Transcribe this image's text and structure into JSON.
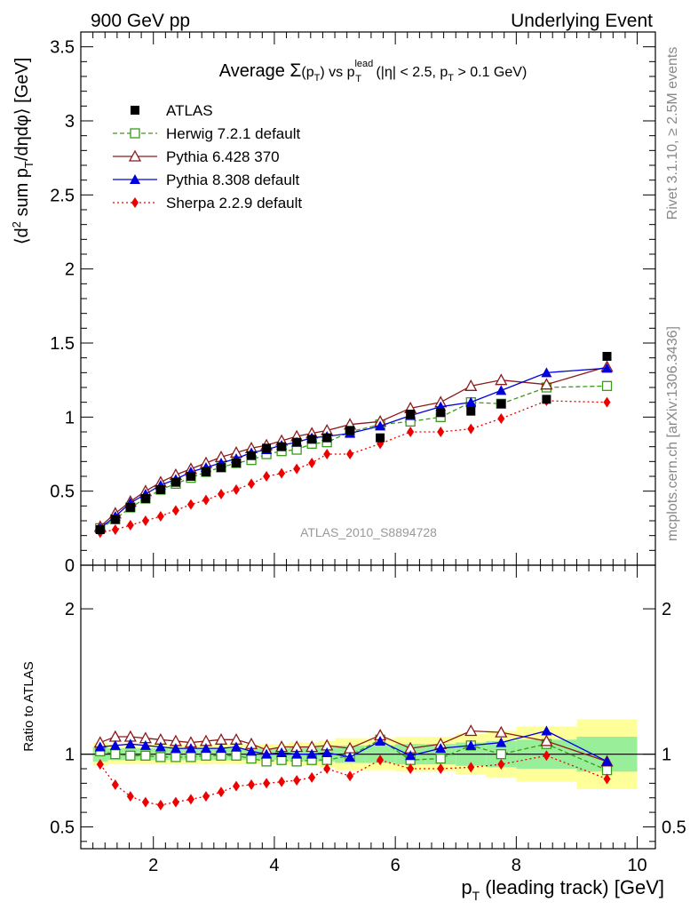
{
  "header": {
    "left_title": "900 GeV pp",
    "right_title": "Underlying Event"
  },
  "side_labels": {
    "rivet": "Rivet 3.1.10, ≥ 2.5M events",
    "mcplots": "mcplots.cern.ch [arXiv:1306.3436]"
  },
  "chart_data": {
    "type": "scatter",
    "title": "Average Σ(p_T) vs p_T^lead (|η| < 2.5, p_T > 0.1 GeV)",
    "analysis_tag": "ATLAS_2010_S8894728",
    "xlabel": "p_T (leading track) [GeV]",
    "ylabel": "⟨d² sum p_T/dηdφ⟩ [GeV]",
    "ratio_ylabel": "Ratio to ATLAS",
    "xlim": [
      0.8,
      10.3
    ],
    "ylim": [
      0,
      3.6
    ],
    "ratio_ylim": [
      0.35,
      2.3
    ],
    "x_ticks": [
      2,
      4,
      6,
      8,
      10
    ],
    "y_ticks": [
      0,
      0.5,
      1,
      1.5,
      2,
      2.5,
      3,
      3.5
    ],
    "ratio_ticks": [
      0.5,
      1,
      2
    ],
    "legend_placement": "top-left",
    "x": [
      1.12,
      1.37,
      1.62,
      1.87,
      2.12,
      2.37,
      2.62,
      2.87,
      3.12,
      3.37,
      3.62,
      3.87,
      4.12,
      4.37,
      4.62,
      4.87,
      5.25,
      5.75,
      6.25,
      6.75,
      7.25,
      7.75,
      8.5,
      9.5
    ],
    "band_edges": [
      1.0,
      1.25,
      1.5,
      1.75,
      2.0,
      2.25,
      2.5,
      2.75,
      3.0,
      3.25,
      3.5,
      3.75,
      4.0,
      4.25,
      4.5,
      4.75,
      5.0,
      5.5,
      6.0,
      6.5,
      7.0,
      7.5,
      8.0,
      9.0,
      10.0
    ],
    "band_inner": [
      0.05,
      0.04,
      0.04,
      0.04,
      0.04,
      0.04,
      0.04,
      0.04,
      0.04,
      0.04,
      0.04,
      0.04,
      0.04,
      0.05,
      0.05,
      0.05,
      0.06,
      0.06,
      0.07,
      0.07,
      0.08,
      0.09,
      0.1,
      0.12
    ],
    "band_outer": [
      0.08,
      0.07,
      0.07,
      0.07,
      0.07,
      0.07,
      0.07,
      0.07,
      0.07,
      0.07,
      0.07,
      0.07,
      0.07,
      0.08,
      0.08,
      0.09,
      0.11,
      0.11,
      0.12,
      0.12,
      0.14,
      0.16,
      0.19,
      0.24
    ],
    "series": [
      {
        "name": "ATLAS",
        "style": "data",
        "color": "#000000",
        "values": [
          0.24,
          0.31,
          0.39,
          0.45,
          0.51,
          0.56,
          0.6,
          0.63,
          0.66,
          0.69,
          0.74,
          0.79,
          0.8,
          0.83,
          0.85,
          0.86,
          0.91,
          0.86,
          1.02,
          1.03,
          1.04,
          1.09,
          1.12,
          1.41
        ],
        "ratio": [
          1,
          1,
          1,
          1,
          1,
          1,
          1,
          1,
          1,
          1,
          1,
          1,
          1,
          1,
          1,
          1,
          1,
          1,
          1,
          1,
          1,
          1,
          1,
          1
        ]
      },
      {
        "name": "Herwig 7.2.1 default",
        "style": "open-square-dashed",
        "color": "#3a9a1a",
        "values": [
          0.25,
          0.31,
          0.39,
          0.45,
          0.51,
          0.55,
          0.59,
          0.63,
          0.66,
          0.69,
          0.71,
          0.75,
          0.77,
          0.78,
          0.82,
          0.83,
          0.9,
          0.95,
          0.97,
          1.0,
          1.1,
          1.09,
          1.2,
          1.21
        ],
        "ratio": [
          1.02,
          1.0,
          0.99,
          0.99,
          0.98,
          0.98,
          0.98,
          0.99,
          0.99,
          0.99,
          0.97,
          0.95,
          0.96,
          0.95,
          0.96,
          0.96,
          0.99,
          1.1,
          0.96,
          0.97,
          1.06,
          1.0,
          1.07,
          0.89
        ]
      },
      {
        "name": "Pythia 6.428 370",
        "style": "open-triangle-solid",
        "color": "#8b1a1a",
        "values": [
          0.26,
          0.35,
          0.43,
          0.5,
          0.56,
          0.61,
          0.65,
          0.69,
          0.73,
          0.76,
          0.79,
          0.81,
          0.84,
          0.87,
          0.89,
          0.91,
          0.95,
          0.97,
          1.06,
          1.1,
          1.21,
          1.25,
          1.22,
          1.34
        ],
        "ratio": [
          1.08,
          1.12,
          1.12,
          1.11,
          1.1,
          1.09,
          1.08,
          1.09,
          1.1,
          1.1,
          1.07,
          1.03,
          1.05,
          1.05,
          1.05,
          1.06,
          1.04,
          1.13,
          1.04,
          1.07,
          1.16,
          1.15,
          1.09,
          0.95
        ]
      },
      {
        "name": "Pythia 8.308 default",
        "style": "filled-triangle-solid",
        "color": "#0000dd",
        "values": [
          0.25,
          0.33,
          0.42,
          0.48,
          0.54,
          0.58,
          0.63,
          0.66,
          0.69,
          0.72,
          0.76,
          0.78,
          0.81,
          0.83,
          0.86,
          0.87,
          0.89,
          0.94,
          1.01,
          1.07,
          1.1,
          1.18,
          1.3,
          1.33
        ],
        "ratio": [
          1.05,
          1.06,
          1.07,
          1.06,
          1.05,
          1.04,
          1.04,
          1.04,
          1.04,
          1.05,
          1.02,
          1.0,
          1.01,
          1.0,
          1.0,
          1.01,
          0.98,
          1.09,
          0.99,
          1.04,
          1.06,
          1.08,
          1.16,
          0.95
        ]
      },
      {
        "name": "Sherpa 2.2.9 default",
        "style": "filled-diamond-dotted",
        "color": "#ee0000",
        "values": [
          0.22,
          0.24,
          0.27,
          0.3,
          0.33,
          0.37,
          0.41,
          0.44,
          0.48,
          0.51,
          0.55,
          0.6,
          0.62,
          0.65,
          0.69,
          0.75,
          0.75,
          0.82,
          0.9,
          0.9,
          0.92,
          0.99,
          1.11,
          1.1
        ],
        "ratio": [
          0.93,
          0.79,
          0.71,
          0.67,
          0.65,
          0.67,
          0.69,
          0.71,
          0.74,
          0.78,
          0.79,
          0.8,
          0.81,
          0.82,
          0.84,
          0.9,
          0.85,
          0.96,
          0.9,
          0.9,
          0.91,
          0.93,
          0.99,
          0.83
        ]
      }
    ]
  }
}
